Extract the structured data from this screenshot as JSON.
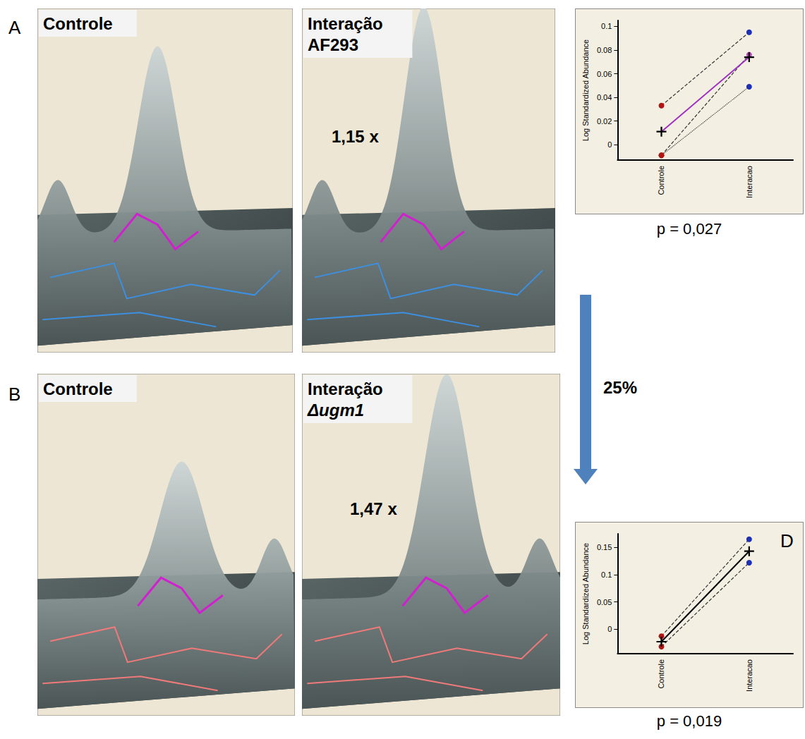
{
  "chart_data": [
    {
      "type": "line",
      "y_label": "Log Standardized Abundance",
      "categories": [
        "Controle",
        "Interacao"
      ],
      "ylim": [
        -0.013,
        0.105
      ],
      "yticks": [
        0,
        0.02,
        0.04,
        0.06,
        0.08,
        0.1
      ],
      "grid": false,
      "annotations": [
        "p = 0,027"
      ],
      "series": [
        {
          "values": [
            0.033,
            0.095
          ],
          "color": "#333333",
          "colors": [
            "#b01515",
            "#1c2fb5"
          ],
          "marker": "circle",
          "line_style": "dashed"
        },
        {
          "values": [
            -0.009,
            0.049
          ],
          "color": "#333333",
          "colors": [
            "#b01515",
            "#1c2fb5"
          ],
          "marker": "circle",
          "line_style": "dotted"
        },
        {
          "values": [
            -0.009,
            0.076
          ],
          "color": "#333333",
          "colors": [
            "#b01515",
            "#c040c0"
          ],
          "marker": "circle",
          "line_style": "dashed"
        },
        {
          "values": [
            0.011,
            0.074
          ],
          "color": "#a030c0",
          "colors": [
            "#000000",
            "#000000"
          ],
          "marker": "cross",
          "line_style": "solid"
        }
      ]
    },
    {
      "type": "line",
      "y_label": "Log Standardized Abundance",
      "categories": [
        "Controle",
        "Interacao"
      ],
      "ylim": [
        -0.045,
        0.175
      ],
      "yticks": [
        0,
        0.05,
        0.1,
        0.15
      ],
      "grid": false,
      "annotations": [
        "p = 0,019"
      ],
      "series": [
        {
          "values": [
            -0.013,
            0.165
          ],
          "color": "#333333",
          "colors": [
            "#b01515",
            "#1c2fb5"
          ],
          "marker": "circle",
          "line_style": "dashed"
        },
        {
          "values": [
            -0.032,
            0.122
          ],
          "color": "#333333",
          "colors": [
            "#b01515",
            "#1c2fb5"
          ],
          "marker": "circle",
          "line_style": "dashed"
        },
        {
          "values": [
            -0.023,
            0.143
          ],
          "color": "#000000",
          "colors": [
            "#000000",
            "#000000"
          ],
          "marker": "cross",
          "line_style": "solid"
        }
      ]
    }
  ],
  "figure": {
    "rows": [
      {
        "letter": "A",
        "left_title": "Controle",
        "right_title": "Interação AF293",
        "fold_change": "1,15 x"
      },
      {
        "letter": "B",
        "left_title": "Controle",
        "right_title": "Interação Δugm1",
        "fold_change": "1,47 x"
      }
    ],
    "arrow_label": "25%",
    "plot_letter": "D"
  }
}
